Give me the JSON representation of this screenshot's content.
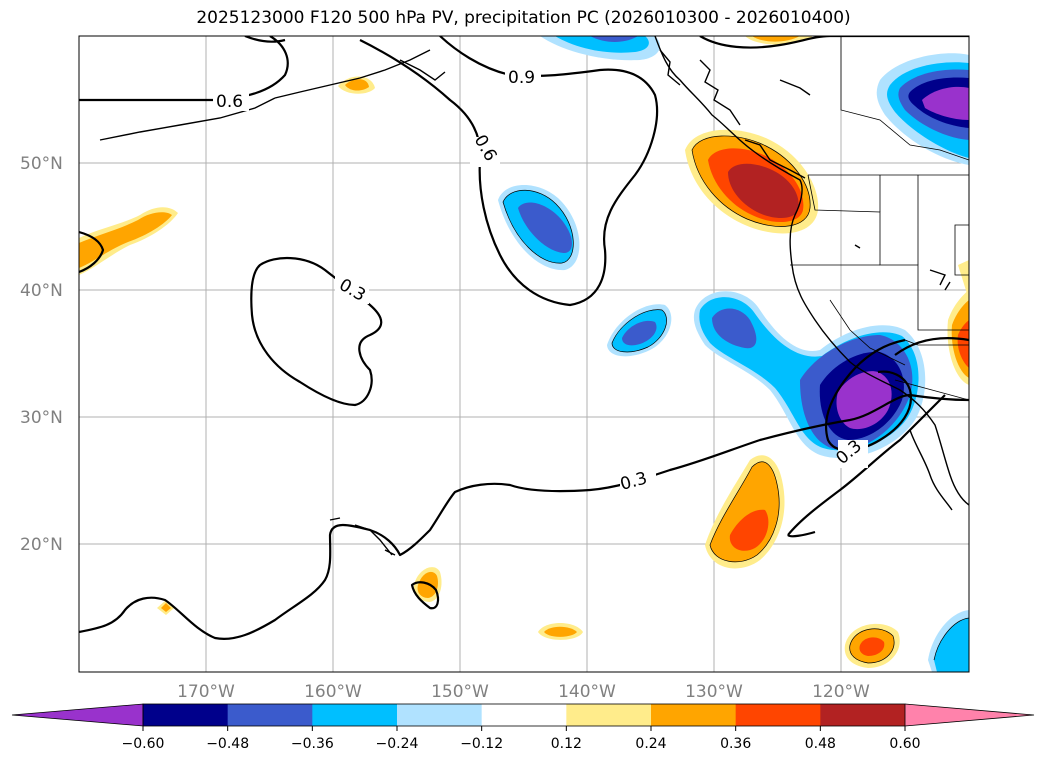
{
  "title": "2025123000 F120 500 hPa PV, precipitation PC (2026010300 - 2026010400)",
  "lat_labels": [
    "50°N",
    "40°N",
    "30°N",
    "20°N"
  ],
  "lon_labels": [
    "170°W",
    "160°W",
    "150°W",
    "140°W",
    "130°W",
    "120°W"
  ],
  "contour_labels": [
    "0.6",
    "0.9",
    "0.6",
    "0.3",
    "0.3",
    "0.3"
  ],
  "colorbar": {
    "ticks": [
      "−0.60",
      "−0.48",
      "−0.36",
      "−0.24",
      "−0.12",
      "0.12",
      "0.24",
      "0.36",
      "0.48",
      "0.60"
    ],
    "colors": [
      "#9932cc",
      "#00008b",
      "#3b5bcc",
      "#00bfff",
      "#b0e2ff",
      "#ffffff",
      "#ffec8b",
      "#ffa500",
      "#ff4500",
      "#b22222",
      "#ff82ab"
    ]
  }
}
